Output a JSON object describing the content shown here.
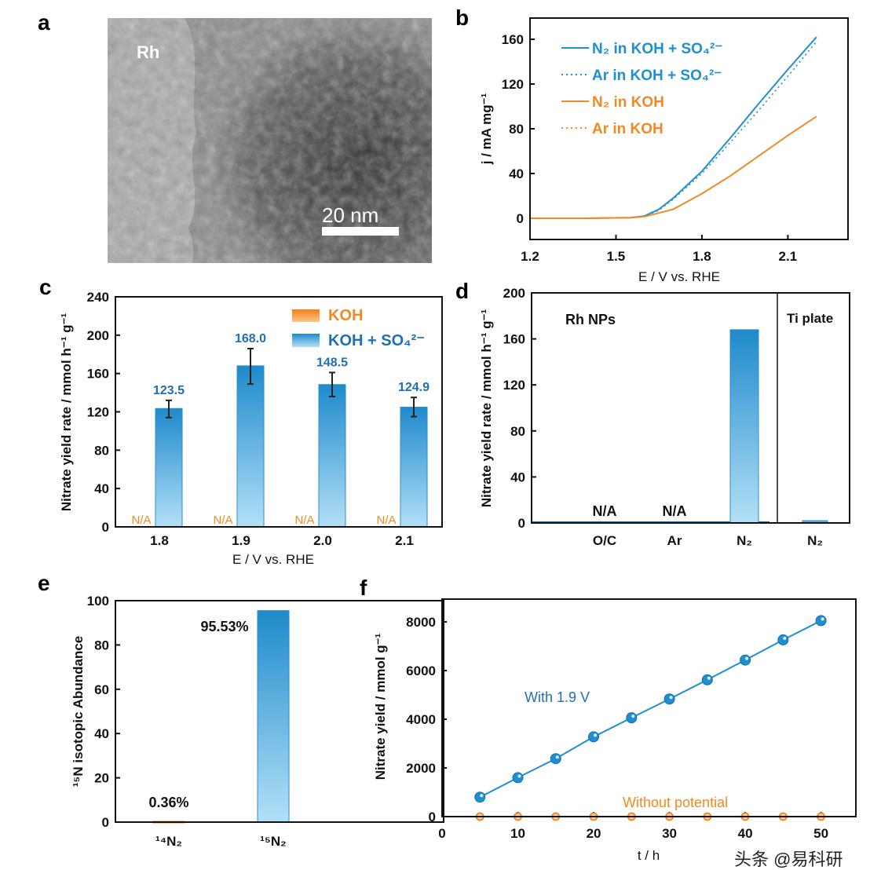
{
  "panel_labels": {
    "a": "a",
    "b": "b",
    "c": "c",
    "d": "d",
    "e": "e",
    "f": "f"
  },
  "panel_a": {
    "label_rh": "Rh",
    "scale_bar": "20 nm"
  },
  "watermark": "头条 @易科研",
  "colors": {
    "blue": "#1f8fd0",
    "blue_light": "#a9dbf5",
    "orange": "#f08a24",
    "axis": "#111111"
  },
  "chart_data": [
    {
      "panel": "b",
      "type": "line",
      "xlabel": "E / V vs. RHE",
      "ylabel": "j / mA mg⁻¹",
      "xlim": [
        1.2,
        2.31
      ],
      "ylim": [
        -19,
        179
      ],
      "xticks": [
        1.2,
        1.5,
        1.8,
        2.1
      ],
      "yticks": [
        0,
        40,
        80,
        120,
        160
      ],
      "legend_placement": "top-left",
      "series": [
        {
          "name": "N₂  in KOH + SO₄²⁻",
          "style": "solid",
          "color": "#1f8fd0",
          "x": [
            1.2,
            1.4,
            1.55,
            1.6,
            1.65,
            1.7,
            1.8,
            1.9,
            2.0,
            2.1,
            2.2
          ],
          "y": [
            0,
            0,
            0.5,
            2,
            8,
            18,
            42,
            72,
            103,
            133,
            162
          ]
        },
        {
          "name": "Ar  in KOH + SO₄²⁻",
          "style": "dotted",
          "color": "#1f8fd0",
          "x": [
            1.2,
            1.4,
            1.55,
            1.6,
            1.65,
            1.7,
            1.8,
            1.9,
            2.0,
            2.1,
            2.2
          ],
          "y": [
            0,
            0,
            0.5,
            2,
            7,
            17,
            40,
            68,
            97,
            127,
            158
          ]
        },
        {
          "name": "N₂  in KOH",
          "style": "solid",
          "color": "#f08a24",
          "x": [
            1.2,
            1.4,
            1.55,
            1.6,
            1.7,
            1.8,
            1.9,
            2.0,
            2.1,
            2.2
          ],
          "y": [
            0,
            0,
            0.5,
            1.5,
            8,
            22,
            38,
            56,
            74,
            91
          ]
        },
        {
          "name": "Ar  in KOH",
          "style": "dotted",
          "color": "#f08a24",
          "x": [
            1.2,
            1.4,
            1.55,
            1.6,
            1.7,
            1.8,
            1.9,
            2.0,
            2.1,
            2.2
          ],
          "y": [
            0,
            0,
            0.5,
            1.5,
            8,
            22,
            38,
            56,
            74,
            91
          ]
        }
      ]
    },
    {
      "panel": "c",
      "type": "bar",
      "xlabel": "E / V vs. RHE",
      "ylabel": "Nitrate yield rate / mmol h⁻¹ g⁻¹",
      "ylim": [
        0,
        240
      ],
      "yticks": [
        0,
        40,
        80,
        120,
        160,
        200,
        240
      ],
      "categories": [
        "1.8",
        "1.9",
        "2.0",
        "2.1"
      ],
      "legend_placement": "top-right",
      "series": [
        {
          "name": "KOH",
          "color": "#f08a24",
          "values": [
            null,
            null,
            null,
            null
          ],
          "labels": [
            "N/A",
            "N/A",
            "N/A",
            "N/A"
          ]
        },
        {
          "name": "KOH + SO₄²⁻",
          "color": "#1f8fd0",
          "values": [
            123.5,
            168.0,
            148.5,
            124.9
          ],
          "labels": [
            "123.5",
            "168.0",
            "148.5",
            "124.9"
          ],
          "error_low": [
            114,
            149,
            136,
            115
          ],
          "error_high": [
            132,
            186,
            161,
            135
          ]
        }
      ]
    },
    {
      "panel": "d",
      "type": "bar",
      "ylabel": "Nitrate yield rate / mmol h⁻¹ g⁻¹",
      "ylim": [
        0,
        200
      ],
      "yticks": [
        0,
        40,
        80,
        120,
        160,
        200
      ],
      "groups": [
        "Rh NPs",
        "Ti plate"
      ],
      "categories": [
        "O/C",
        "Ar",
        "N₂",
        "N₂"
      ],
      "values": [
        null,
        null,
        168,
        2
      ],
      "labels": [
        "N/A",
        "N/A",
        "",
        ""
      ]
    },
    {
      "panel": "e",
      "type": "bar",
      "ylabel": "¹⁵N  isotopic Abundance",
      "ylim": [
        0,
        100
      ],
      "yticks": [
        0,
        20,
        40,
        60,
        80,
        100
      ],
      "categories": [
        "¹⁴N₂",
        "¹⁵N₂"
      ],
      "values": [
        0.36,
        95.53
      ],
      "labels": [
        "0.36%",
        "95.53%"
      ]
    },
    {
      "panel": "f",
      "type": "line",
      "xlabel": "t / h",
      "ylabel": "Nitrate yield / mmol g⁻¹",
      "xlim": [
        0,
        54.6
      ],
      "ylim": [
        0,
        8935
      ],
      "xticks": [
        0,
        10,
        20,
        30,
        40,
        50
      ],
      "yticks": [
        0,
        2000,
        4000,
        6000,
        8000
      ],
      "series": [
        {
          "name": "With 1.9 V",
          "color": "#1f8fd0",
          "x": [
            5,
            10,
            15,
            20,
            25,
            30,
            35,
            40,
            45,
            50
          ],
          "y": [
            800,
            1600,
            2380,
            3280,
            4060,
            4830,
            5620,
            6430,
            7260,
            8050
          ]
        },
        {
          "name": "Without  potential",
          "color": "#f08a24",
          "x": [
            5,
            10,
            15,
            20,
            25,
            30,
            35,
            40,
            45,
            50
          ],
          "y": [
            0,
            0,
            0,
            0,
            0,
            0,
            0,
            0,
            0,
            0
          ]
        }
      ]
    }
  ]
}
